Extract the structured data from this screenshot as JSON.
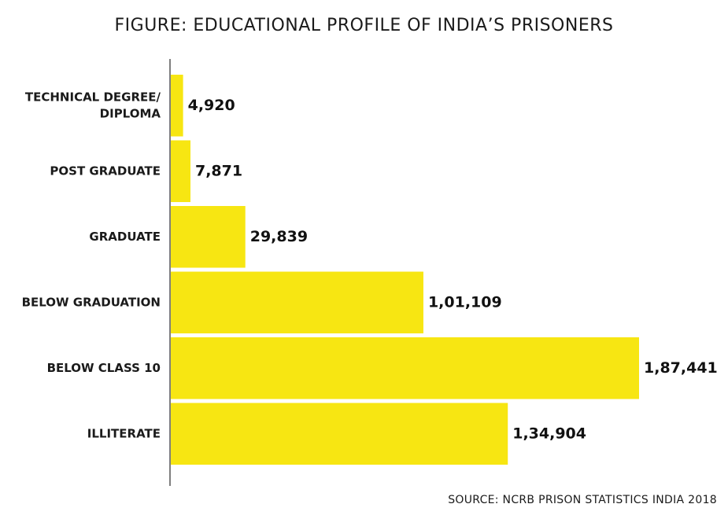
{
  "chart_data": {
    "type": "bar",
    "orientation": "horizontal",
    "title": "FIGURE: EDUCATIONAL PROFILE OF INDIA’S PRISONERS",
    "source": "SOURCE: NCRB PRISON STATISTICS INDIA 2018",
    "categories": [
      [
        "TECHNICAL DEGREE/",
        "DIPLOMA"
      ],
      [
        "POST GRADUATE"
      ],
      [
        "GRADUATE"
      ],
      [
        "BELOW GRADUATION"
      ],
      [
        "BELOW CLASS 10"
      ],
      [
        "ILLITERATE"
      ]
    ],
    "values": [
      4920,
      7871,
      29839,
      101109,
      187441,
      134904
    ],
    "value_labels": [
      "4,920",
      "7,871",
      "29,839",
      "1,01,109",
      "1,87,441",
      "1,34,904"
    ],
    "bar_color": "#f7e612",
    "xlim": [
      0,
      187441
    ],
    "grid": false,
    "legend": "none"
  }
}
